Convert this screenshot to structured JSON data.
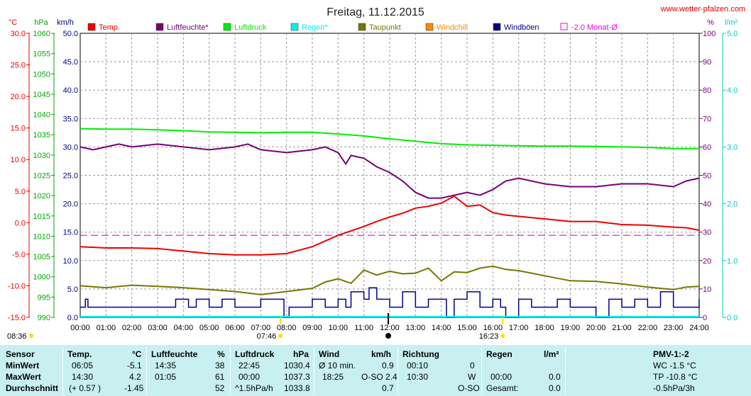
{
  "chart_data": {
    "type": "line",
    "title": "Freitag, 11.12.2015",
    "source": "www.wetter-pfalzen.com",
    "legend": [
      "Temp.",
      "Luftfeuchte*",
      "Luftdruck",
      "Regen*",
      "Taupunkt",
      "Windchill",
      "Windböen",
      "-2.0 Monat-Ø"
    ],
    "colors": {
      "temp": "#ee0000",
      "humidity": "#770077",
      "pressure": "#00ee00",
      "rain": "#00eeee",
      "dew": "#777700",
      "windchill": "#ff8800",
      "gust": "#000088",
      "month": "#ee00ee"
    },
    "axes": {
      "temp_unit": "°C",
      "temp_ticks": [
        "30.0",
        "25.0",
        "20.0",
        "15.0",
        "10.0",
        "5.0",
        "0.0",
        "-5.0",
        "-10.0",
        "-15.0"
      ],
      "press_unit": "hPa",
      "press_ticks": [
        "1060",
        "1055",
        "1050",
        "1045",
        "1040",
        "1035",
        "1030",
        "1025",
        "1020",
        "1015",
        "1010",
        "1005",
        "1000",
        "995",
        "990"
      ],
      "wind_unit": "km/h",
      "wind_ticks": [
        "50.0",
        "45.0",
        "40.0",
        "35.0",
        "30.0",
        "25.0",
        "20.0",
        "15.0",
        "10.0",
        "5.0",
        "0.0"
      ],
      "hum_unit": "%",
      "hum_ticks": [
        "100",
        "90",
        "80",
        "70",
        "60",
        "50",
        "40",
        "30",
        "20",
        "10",
        "0"
      ],
      "rain_unit": "l/m²",
      "rain_ticks": [
        "5.0",
        "4.0",
        "3.0",
        "2.0",
        "1.0",
        "0.0"
      ],
      "time_ticks": [
        "00:00",
        "01:00",
        "02:00",
        "03:00",
        "04:00",
        "05:00",
        "06:00",
        "07:00",
        "08:00",
        "09:00",
        "10:00",
        "11:00",
        "12:00",
        "13:00",
        "14:00",
        "15:00",
        "16:00",
        "17:00",
        "18:00",
        "19:00",
        "20:00",
        "21:00",
        "22:00",
        "23:00",
        "24:00"
      ],
      "grid": true
    },
    "sun": {
      "sunrise_prev": "08:36",
      "sunrise": "07:46",
      "sunset": "16:23"
    },
    "series": [
      {
        "key": "temp",
        "name": "Temp.",
        "unit": "°C",
        "x": [
          0,
          1,
          2,
          3,
          4,
          5,
          6,
          7,
          8,
          9,
          10,
          10.5,
          11,
          11.5,
          12,
          12.5,
          13,
          13.5,
          14,
          14.5,
          15,
          15.5,
          16,
          16.5,
          17,
          18,
          19,
          20,
          21,
          22,
          23,
          23.5,
          24
        ],
        "y": [
          -3.8,
          -4.0,
          -4.0,
          -4.1,
          -4.5,
          -4.9,
          -5.1,
          -5.1,
          -4.9,
          -3.8,
          -2.0,
          -1.3,
          -0.6,
          0.2,
          0.9,
          1.5,
          2.3,
          2.6,
          3.1,
          4.2,
          2.6,
          2.8,
          1.6,
          1.2,
          1.0,
          0.6,
          0.2,
          0.2,
          -0.3,
          -0.4,
          -0.7,
          -0.8,
          -1.2
        ]
      },
      {
        "key": "humidity",
        "name": "Luftfeuchte*",
        "unit": "%",
        "x": [
          0,
          0.5,
          1,
          1.5,
          2,
          3,
          4,
          5,
          6,
          6.5,
          7,
          8,
          9,
          9.5,
          10,
          10.3,
          10.5,
          11,
          11.5,
          12,
          12.5,
          13,
          13.5,
          14,
          14.5,
          15,
          15.5,
          16,
          16.5,
          17,
          18,
          19,
          20,
          21,
          22,
          23,
          23.5,
          24
        ],
        "y": [
          60,
          59,
          60,
          61,
          60,
          61,
          60,
          59,
          60,
          61,
          59,
          58,
          59,
          60,
          58,
          54,
          57,
          56,
          53,
          51,
          48,
          44,
          42,
          42,
          43,
          44,
          43,
          45,
          48,
          49,
          47,
          46,
          46,
          47,
          47,
          46,
          48,
          49
        ]
      },
      {
        "key": "pressure",
        "name": "Luftdruck",
        "unit": "hPa",
        "x": [
          0,
          1,
          2,
          3,
          4,
          5,
          6,
          7,
          8,
          9,
          10,
          11,
          12,
          13,
          14,
          15,
          16,
          17,
          18,
          19,
          20,
          21,
          22,
          23,
          24
        ],
        "y": [
          1036.5,
          1036.4,
          1036.4,
          1036.2,
          1036.0,
          1035.7,
          1035.6,
          1035.5,
          1035.6,
          1035.6,
          1035.2,
          1034.7,
          1034.0,
          1033.4,
          1032.8,
          1032.5,
          1032.4,
          1032.3,
          1032.2,
          1032.2,
          1032.1,
          1032.0,
          1031.9,
          1031.6,
          1031.6
        ]
      },
      {
        "key": "dew",
        "name": "Taupunkt",
        "unit": "°C",
        "x": [
          0,
          1,
          2,
          3,
          4,
          5,
          6,
          7,
          8,
          9,
          9.5,
          10,
          10.5,
          11,
          11.5,
          12,
          12.5,
          13,
          13.5,
          14,
          14.5,
          15,
          15.5,
          16,
          16.5,
          17,
          18,
          19,
          20,
          21,
          22,
          23,
          23.5,
          24
        ],
        "y": [
          -10.0,
          -10.3,
          -9.9,
          -10.1,
          -10.3,
          -10.6,
          -10.9,
          -11.4,
          -10.9,
          -10.4,
          -9.4,
          -8.9,
          -9.6,
          -7.5,
          -8.3,
          -7.7,
          -8.1,
          -8.0,
          -7.2,
          -9.2,
          -7.8,
          -7.9,
          -7.2,
          -6.9,
          -7.4,
          -7.6,
          -8.4,
          -9.2,
          -9.3,
          -9.7,
          -10.2,
          -10.6,
          -10.2,
          -10.1
        ]
      },
      {
        "key": "gust",
        "name": "Windböen",
        "unit": "km/h",
        "x": [
          0,
          0.2,
          0.3,
          0.9,
          1.3,
          3.5,
          3.7,
          4.2,
          4.5,
          5.0,
          5.5,
          6.0,
          6.5,
          7.0,
          7.5,
          7.9,
          8.1,
          8.3,
          9.0,
          9.5,
          10.0,
          10.3,
          10.5,
          11.0,
          11.2,
          11.5,
          12.0,
          12.5,
          13.0,
          13.5,
          14.0,
          14.2,
          14.5,
          15.0,
          15.5,
          16.0,
          16.3,
          16.5,
          16.6,
          17.0,
          17.5,
          18.0,
          18.5,
          19.0,
          19.5,
          20.0,
          20.5,
          21.0,
          21.5,
          22.0,
          22.5,
          23.0,
          23.5,
          24.0
        ],
        "y": [
          1.8,
          3.2,
          1.8,
          1.8,
          1.8,
          1.8,
          3.2,
          1.8,
          3.2,
          1.8,
          3.2,
          1.8,
          1.8,
          3.2,
          3.2,
          0,
          1.8,
          1.8,
          3.2,
          1.8,
          3.2,
          1.8,
          4.5,
          3.2,
          5.2,
          3.2,
          1.8,
          4.5,
          1.8,
          3.2,
          3.2,
          0,
          3.2,
          4.5,
          1.8,
          3.2,
          1.8,
          0,
          0,
          3.2,
          1.8,
          1.8,
          3.2,
          1.8,
          1.8,
          0,
          3.2,
          1.8,
          3.2,
          1.8,
          4.5,
          1.8,
          1.8,
          3.2
        ]
      },
      {
        "key": "month",
        "name": "-2.0 Monat-Ø",
        "unit": "°C",
        "x": [
          0,
          24
        ],
        "y": [
          -2.0,
          -2.0
        ]
      }
    ],
    "ranges": {
      "temp": [
        -15,
        30
      ],
      "pressure": [
        990,
        1060
      ],
      "wind": [
        0,
        50
      ],
      "humidity": [
        0,
        100
      ],
      "rain": [
        0,
        5
      ]
    }
  },
  "stats": {
    "headers": {
      "sensor": "Sensor",
      "temp": "Temp.",
      "temp_unit": "°C",
      "hum": "Luftfeuchte",
      "hum_unit": "%",
      "press": "Luftdruck",
      "press_unit": "hPa",
      "wind": "Wind",
      "wind_unit": "km/h",
      "dir": "Richtung",
      "rain": "Regen",
      "rain_unit": "l/m²",
      "pmv": "PMV-1:-2"
    },
    "min": {
      "label": "MinWert",
      "temp_time": "06:05",
      "temp": "-5.1",
      "hum_time": "14:35",
      "hum": "38",
      "press_time": "22:45",
      "press": "1030.4",
      "wind_label": "Ø 10 min.",
      "wind": "0.9",
      "dir_time": "00:10",
      "dir": "0",
      "pmv": "WC -1.5 °C"
    },
    "max": {
      "label": "MaxWert",
      "temp_time": "14:30",
      "temp": "4.2",
      "hum_time": "01:05",
      "hum": "61",
      "press_time": "00:00",
      "press": "1037.3",
      "wind_time": "18:25",
      "wind": "O-SO 2.4",
      "dir_time": "10:30",
      "dir": "W",
      "rain_time": "00:00",
      "rain": "0.0",
      "pmv": "TP -10.8 °C"
    },
    "avg": {
      "label": "Durchschnitt",
      "temp_delta": "(+ 0.57 )",
      "temp": "-1.45",
      "hum": "52",
      "press_label": "^1.5hPa/h",
      "press": "1033.8",
      "wind": "0.7",
      "dir": "O-SO",
      "rain_label": "Gesamt:",
      "rain": "0.0",
      "pmv": "-0.5hPa/3h"
    }
  }
}
